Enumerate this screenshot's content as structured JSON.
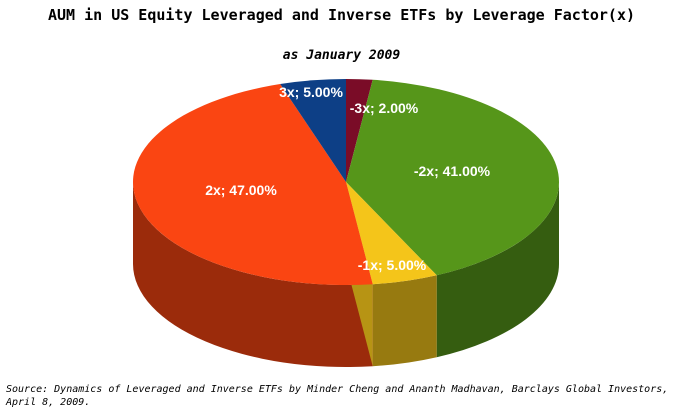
{
  "chart_data": {
    "type": "pie",
    "title": "AUM in US Equity Leveraged and Inverse ETFs by Leverage Factor(x)",
    "subtitle": "as January 2009",
    "slices": [
      {
        "category": "-3x",
        "value": 2.0,
        "label": "-3x; 2.00%",
        "color": "#7a0c27"
      },
      {
        "category": "-2x",
        "value": 41.0,
        "label": "-2x; 41.00%",
        "color": "#56961a"
      },
      {
        "category": "-1x",
        "value": 5.0,
        "label": "-1x; 5.00%",
        "color": "#f4c51a"
      },
      {
        "category": "2x",
        "value": 47.0,
        "label": "2x; 47.00%",
        "color": "#fa4512"
      },
      {
        "category": "3x",
        "value": 5.0,
        "label": "3x; 5.00%",
        "color": "#0d3f86"
      }
    ],
    "legend": "none",
    "style": "3d"
  },
  "source_note": "Source: Dynamics of Leveraged and Inverse ETFs by Minder Cheng and Ananth Madhavan, Barclays Global Investors, April 8, 2009."
}
